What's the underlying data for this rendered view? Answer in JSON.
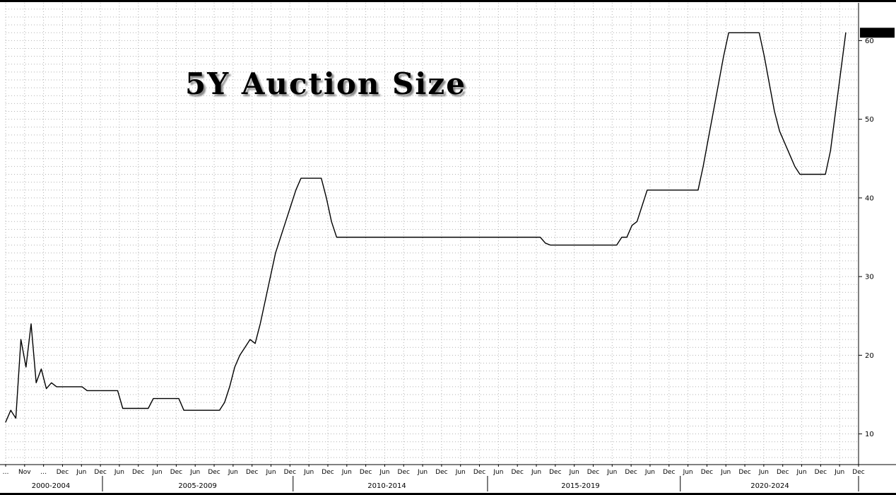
{
  "chart_data": {
    "type": "line",
    "title": "5Y Auction Size",
    "last_value_label": "61.000",
    "line_color": "#000000",
    "background": "#ffffff",
    "grid": {
      "style": "dotted",
      "h_step": 1,
      "v_step": "half-year"
    },
    "y_axis": {
      "side": "right",
      "ticks": [
        10,
        20,
        30,
        40,
        50,
        60
      ],
      "ylim": [
        6.1,
        64.8
      ]
    },
    "x_axis": {
      "x_end_fraction": 0.985,
      "month_labels": [
        "…",
        "Nov",
        "…",
        "Dec",
        "Jun",
        "Dec",
        "Jun",
        "Dec",
        "Jun",
        "Dec",
        "Jun",
        "Dec",
        "Jun",
        "Dec",
        "Jun",
        "Dec",
        "Jun",
        "Dec",
        "Jun",
        "Dec",
        "Jun",
        "Dec",
        "Jun",
        "Dec",
        "Jun",
        "Dec",
        "Jun",
        "Dec",
        "Jun",
        "Dec",
        "Jun",
        "Dec",
        "Jun",
        "Dec",
        "Jun",
        "Dec",
        "Jun",
        "Dec",
        "Jun",
        "Dec",
        "Jun",
        "Dec",
        "Jun",
        "Dec",
        "Jun",
        "Dec"
      ],
      "sections": [
        {
          "label": "2000-2004",
          "center": 0.053,
          "end": 0.1135
        },
        {
          "label": "2005-2009",
          "center": 0.225,
          "end": 0.337
        },
        {
          "label": "2010-2014",
          "center": 0.447,
          "end": 0.565
        },
        {
          "label": "2015-2019",
          "center": 0.674,
          "end": 0.791
        },
        {
          "label": "2020-2024",
          "center": 0.896,
          "end": 1.0
        }
      ]
    },
    "series": [
      {
        "name": "5Y Auction Size ($bn)",
        "values": [
          11.5,
          13,
          12,
          22,
          18.5,
          24,
          16.5,
          18.25,
          15.75,
          16.5,
          16,
          16,
          16,
          16,
          16,
          16,
          15.5,
          15.5,
          15.5,
          15.5,
          15.5,
          15.5,
          15.5,
          13.25,
          13.25,
          13.25,
          13.25,
          13.25,
          13.25,
          14.5,
          14.5,
          14.5,
          14.5,
          14.5,
          14.5,
          13,
          13,
          13,
          13,
          13,
          13,
          13,
          13,
          14,
          16,
          18.5,
          20,
          21,
          22,
          21.5,
          24,
          27,
          30,
          33,
          35,
          37,
          39,
          41,
          42.5,
          42.5,
          42.5,
          42.5,
          42.5,
          40,
          37,
          35,
          35,
          35,
          35,
          35,
          35,
          35,
          35,
          35,
          35,
          35,
          35,
          35,
          35,
          35,
          35,
          35,
          35,
          35,
          35,
          35,
          35,
          35,
          35,
          35,
          35,
          35,
          35,
          35,
          35,
          35,
          35,
          35,
          35,
          35,
          35,
          35,
          35,
          35,
          35,
          35,
          34.25,
          34,
          34,
          34,
          34,
          34,
          34,
          34,
          34,
          34,
          34,
          34,
          34,
          34,
          34,
          35,
          35,
          36.5,
          37,
          39,
          41,
          41,
          41,
          41,
          41,
          41,
          41,
          41,
          41,
          41,
          41,
          44,
          47.5,
          51,
          54.5,
          58,
          61,
          61,
          61,
          61,
          61,
          61,
          61,
          58,
          54.5,
          51,
          48.5,
          47,
          45.5,
          44,
          43,
          43,
          43,
          43,
          43,
          43,
          46,
          51,
          56,
          61
        ]
      }
    ]
  }
}
